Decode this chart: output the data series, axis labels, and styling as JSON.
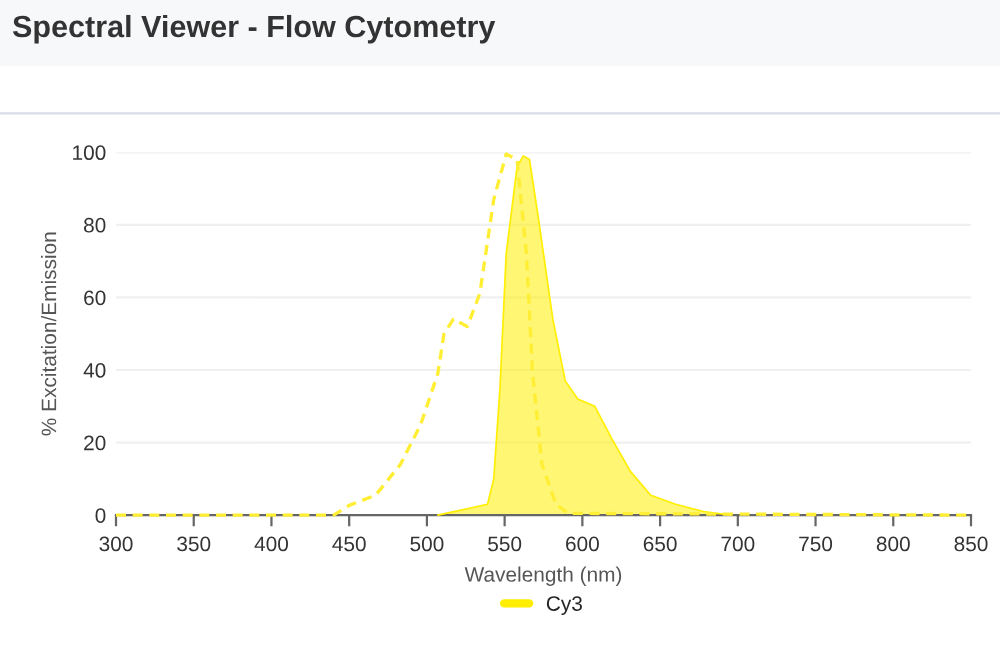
{
  "chart_data": {
    "type": "area",
    "title": "Spectral Viewer - Flow Cytometry",
    "xlabel": "Wavelength (nm)",
    "ylabel": "% Excitation/Emission",
    "xlim": [
      300,
      850
    ],
    "xticks": [
      300,
      350,
      400,
      450,
      500,
      550,
      600,
      650,
      700,
      750,
      800,
      850
    ],
    "ylim": [
      0,
      100
    ],
    "yticks": [
      0,
      20,
      40,
      60,
      80,
      100
    ],
    "grid": "y",
    "legend": "bottom",
    "series": [
      {
        "type": "line",
        "line_style": "dashed",
        "color": "#ffee33",
        "x": [
          300,
          440,
          450,
          467,
          483,
          496,
          507,
          511,
          517,
          526,
          534,
          543,
          551,
          558,
          564,
          568,
          574,
          583,
          591,
          850
        ],
        "values": [
          0,
          0,
          2.7,
          5.5,
          14,
          25,
          39,
          50,
          54,
          52,
          61,
          87,
          99.5,
          98,
          72,
          39,
          14,
          3,
          0.5,
          0
        ]
      },
      {
        "name": "Cy3",
        "color": "#ffee00",
        "x": [
          507,
          539,
          543,
          547,
          551,
          558,
          562,
          566,
          572,
          581,
          589,
          597,
          608,
          619,
          631,
          644,
          660,
          678,
          695
        ],
        "values": [
          0,
          3,
          10,
          35,
          72,
          96,
          99,
          98,
          81,
          54,
          37,
          32,
          30,
          21,
          12,
          5.5,
          3,
          1,
          0
        ]
      }
    ]
  }
}
